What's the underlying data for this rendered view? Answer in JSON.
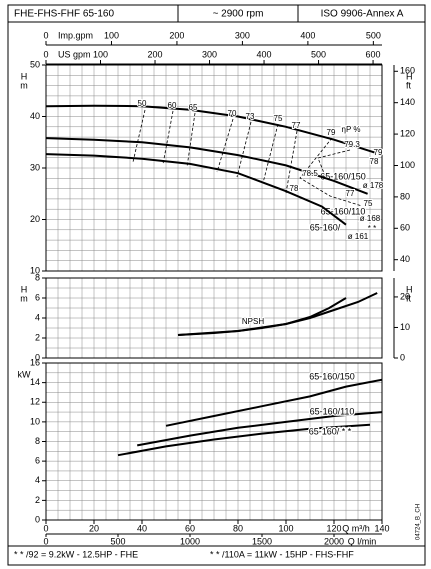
{
  "header": [
    "FHE-FHS-FHF 65-160",
    "~ 2900 rpm",
    "ISO 9906-Annex A"
  ],
  "footer": [
    "* * /92 = 9.2kW - 12.5HP - FHE",
    "* * /110A = 11kW - 15HP - FHS-FHF"
  ],
  "code": "04724_B_CH",
  "chart_data": [
    {
      "type": "line",
      "xlim": [
        0,
        140
      ],
      "top_axes": [
        {
          "label": "Imp.gpm",
          "lim": [
            0,
            513.2
          ],
          "ticks": [
            0,
            100,
            200,
            300,
            400,
            500
          ]
        },
        {
          "label": "US gpm",
          "lim": [
            0,
            616.4
          ],
          "ticks": [
            0,
            100,
            200,
            300,
            400,
            500,
            600
          ]
        }
      ],
      "ylabel": [
        "H",
        "m"
      ],
      "ylim": [
        10,
        50
      ],
      "yticks": [
        10,
        20,
        30,
        40,
        50
      ],
      "y2label": [
        "H",
        "ft"
      ],
      "y2lim": [
        32.8,
        164
      ],
      "y2ticks": [
        40,
        60,
        80,
        100,
        120,
        140,
        160
      ],
      "grid": true,
      "grid_step": {
        "x": 5,
        "y": 2
      },
      "series": [
        {
          "name": "65-160/150",
          "color": "#000000",
          "x": [
            0,
            20,
            40,
            60,
            80,
            100,
            120,
            137
          ],
          "values": [
            42,
            42.1,
            42,
            41.3,
            40,
            38,
            35.5,
            33
          ]
        },
        {
          "name": "65-160/110",
          "color": "#000000",
          "x": [
            0,
            20,
            40,
            60,
            80,
            100,
            120,
            134
          ],
          "values": [
            35.8,
            35.5,
            35,
            34,
            32.5,
            30.5,
            27.5,
            25
          ]
        },
        {
          "name": "65-160/",
          "color": "#000000",
          "x": [
            0,
            20,
            40,
            60,
            80,
            100,
            115,
            125
          ],
          "values": [
            32.7,
            32.4,
            31.8,
            30.8,
            29,
            25.5,
            22.5,
            19
          ]
        }
      ],
      "annotations": [
        "50",
        "60",
        "65",
        "70",
        "73",
        "75",
        "77",
        "79",
        "ηP %",
        "79.3",
        "79",
        "78",
        "78.5",
        "78",
        "77",
        "75",
        "ø 178",
        "ø 168",
        "* *",
        "ø 161"
      ]
    },
    {
      "type": "line",
      "xlim": [
        0,
        140
      ],
      "ylabel": [
        "H",
        "m"
      ],
      "ylim": [
        0,
        8
      ],
      "yticks": [
        0,
        2,
        4,
        6,
        8
      ],
      "y2label": [
        "H",
        "ft"
      ],
      "y2lim": [
        0,
        26.2
      ],
      "y2ticks": [
        0,
        10,
        20
      ],
      "grid": true,
      "grid_step": {
        "x": 5,
        "y": 1
      },
      "series": [
        {
          "color": "#000000",
          "x": [
            55,
            70,
            80,
            90,
            100,
            110,
            120,
            130,
            138
          ],
          "values": [
            2.3,
            2.5,
            2.7,
            3.0,
            3.4,
            4.0,
            4.8,
            5.6,
            6.5
          ]
        },
        {
          "color": "#000000",
          "x": [
            55,
            80,
            100,
            110,
            118,
            125
          ],
          "values": [
            2.3,
            2.7,
            3.4,
            4.1,
            5.0,
            6.0
          ]
        }
      ],
      "annotations": [
        "NPSH"
      ]
    },
    {
      "type": "line",
      "xlim": [
        0,
        140
      ],
      "xticks": [
        0,
        20,
        40,
        60,
        80,
        100,
        120,
        140
      ],
      "xlabel": "Q m³/h",
      "x2label": "Q l/min",
      "x2lim": [
        0,
        2333.3
      ],
      "x2ticks": [
        0,
        500,
        1000,
        1500,
        2000
      ],
      "ylabel": [
        "kW"
      ],
      "ylim": [
        0,
        16
      ],
      "yticks": [
        0,
        2,
        4,
        6,
        8,
        10,
        12,
        14,
        16
      ],
      "grid": true,
      "grid_step": {
        "x": 5,
        "y": 1
      },
      "series": [
        {
          "name": "65-160/150",
          "color": "#000000",
          "x": [
            50,
            70,
            90,
            110,
            125,
            140
          ],
          "values": [
            9.6,
            10.6,
            11.6,
            12.6,
            13.6,
            14.3
          ]
        },
        {
          "name": "65-160/110",
          "color": "#000000",
          "x": [
            38,
            60,
            80,
            100,
            120,
            140
          ],
          "values": [
            7.6,
            8.6,
            9.4,
            10.0,
            10.6,
            11.0
          ]
        },
        {
          "name": "65-160/ * *",
          "color": "#000000",
          "x": [
            30,
            50,
            70,
            90,
            110,
            135
          ],
          "values": [
            6.6,
            7.5,
            8.2,
            8.8,
            9.3,
            9.7
          ]
        }
      ]
    }
  ]
}
